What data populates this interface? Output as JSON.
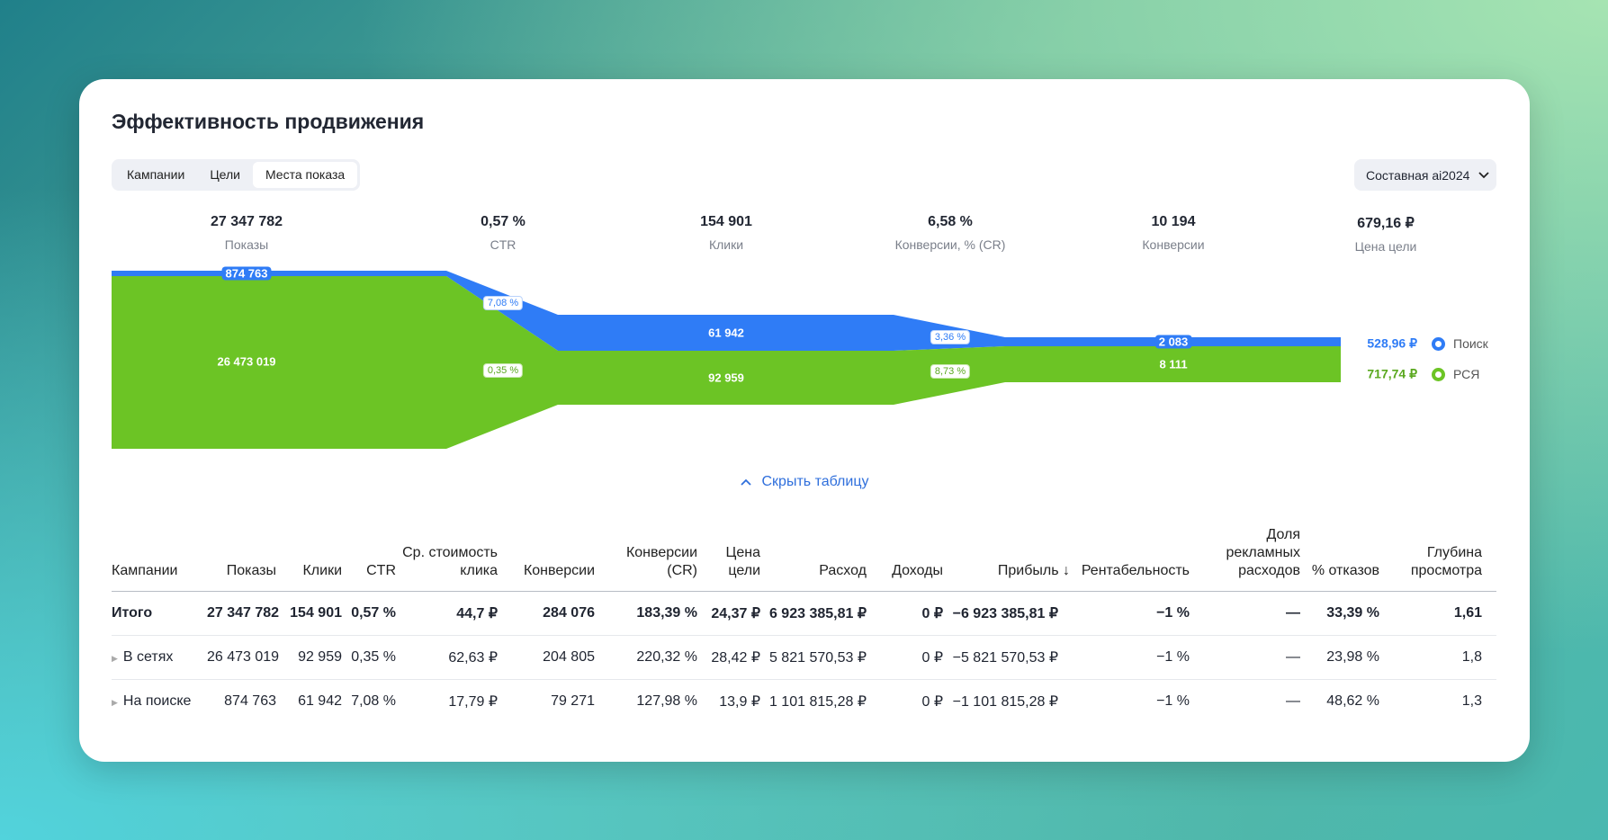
{
  "title": "Эффективность продвижения",
  "tabs": [
    "Кампании",
    "Цели",
    "Места показа"
  ],
  "active_tab": "Места показа",
  "goal_select": "Составная ai2024",
  "colors": {
    "search": "#2f7cf6",
    "networks": "#6cc425"
  },
  "chart_data": {
    "type": "sankey-funnel",
    "stages": [
      {
        "value": "27 347 782",
        "label": "Показы"
      },
      {
        "value": "0,57 %",
        "label": "CTR"
      },
      {
        "value": "154 901",
        "label": "Клики"
      },
      {
        "value": "6,58 %",
        "label": "Конверсии, % (CR)"
      },
      {
        "value": "10 194",
        "label": "Конверсии"
      },
      {
        "value": "679,16 ₽",
        "label": "Цена цели"
      }
    ],
    "series": [
      {
        "name": "Поиск",
        "impressions": "874 763",
        "ctr": "7,08 %",
        "clicks": "61 942",
        "cr": "3,36 %",
        "conversions": "2 083",
        "goal_price": "528,96 ₽",
        "impressions_num": 874763,
        "clicks_num": 61942,
        "conversions_num": 2083
      },
      {
        "name": "РСЯ",
        "impressions": "26 473 019",
        "ctr": "0,35 %",
        "clicks": "92 959",
        "cr": "8,73 %",
        "conversions": "8 111",
        "goal_price": "717,74 ₽",
        "impressions_num": 26473019,
        "clicks_num": 92959,
        "conversions_num": 8111
      }
    ]
  },
  "hide_table": "Скрыть таблицу",
  "table": {
    "headers": [
      "Кампании",
      "Показы",
      "Клики",
      "CTR",
      "Ср. стоимость клика",
      "Конверсии",
      "Конверсии (CR)",
      "Цена цели",
      "Расход",
      "Доходы",
      "Прибыль ↓",
      "Рентабельность",
      "Доля рекламных расходов",
      "% отказов",
      "Глубина просмотра"
    ],
    "rows": [
      [
        "Итого",
        "27 347 782",
        "154 901",
        "0,57 %",
        "44,7 ₽",
        "284 076",
        "183,39 %",
        "24,37 ₽",
        "6 923 385,81 ₽",
        "0 ₽",
        "−6 923 385,81 ₽",
        "−1 %",
        "—",
        "33,39 %",
        "1,61"
      ],
      [
        "В сетях",
        "26 473 019",
        "92 959",
        "0,35 %",
        "62,63 ₽",
        "204 805",
        "220,32 %",
        "28,42 ₽",
        "5 821 570,53 ₽",
        "0 ₽",
        "−5 821 570,53 ₽",
        "−1 %",
        "—",
        "23,98 %",
        "1,8"
      ],
      [
        "На поиске",
        "874 763",
        "61 942",
        "7,08 %",
        "17,79 ₽",
        "79 271",
        "127,98 %",
        "13,9 ₽",
        "1 101 815,28 ₽",
        "0 ₽",
        "−1 101 815,28 ₽",
        "−1 %",
        "—",
        "48,62 %",
        "1,3"
      ]
    ]
  }
}
